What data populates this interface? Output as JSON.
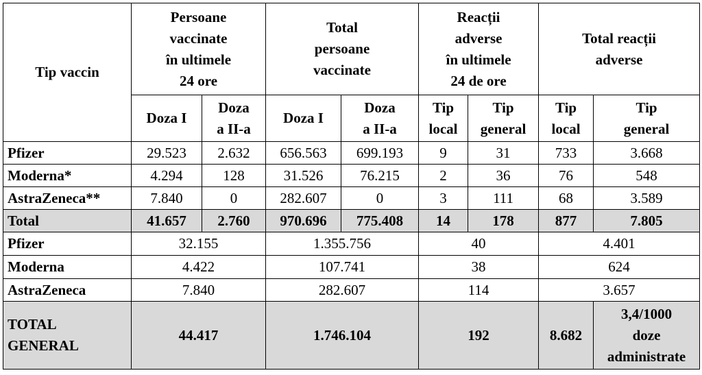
{
  "headers": {
    "tip_vaccin": "Tip vaccin",
    "group1": "Persoane\nvaccinate\nîn ultimele\n24 ore",
    "group2": "Total\npersoane\nvaccinate",
    "group3": "Reacții\nadverse\nîn ultimele\n24 de ore",
    "group4": "Total reacții\nadverse",
    "doza1": "Doza I",
    "doza2": "Doza\na II-a",
    "tip_local": "Tip\nlocal",
    "tip_general": "Tip\ngeneral"
  },
  "rows": [
    {
      "name": "Pfizer",
      "v": [
        "29.523",
        "2.632",
        "656.563",
        "699.193",
        "9",
        "31",
        "733",
        "3.668"
      ]
    },
    {
      "name": "Moderna*",
      "v": [
        "4.294",
        "128",
        "31.526",
        "76.215",
        "2",
        "36",
        "76",
        "548"
      ]
    },
    {
      "name": "AstraZeneca**",
      "v": [
        "7.840",
        "0",
        "282.607",
        "0",
        "3",
        "111",
        "68",
        "3.589"
      ]
    }
  ],
  "total": {
    "name": "Total",
    "v": [
      "41.657",
      "2.760",
      "970.696",
      "775.408",
      "14",
      "178",
      "877",
      "7.805"
    ]
  },
  "summary_rows": [
    {
      "name": "Pfizer",
      "v": [
        "32.155",
        "1.355.756",
        "40",
        "4.401"
      ]
    },
    {
      "name": "Moderna",
      "v": [
        "4.422",
        "107.741",
        "38",
        "624"
      ]
    },
    {
      "name": "AstraZeneca",
      "v": [
        "7.840",
        "282.607",
        "114",
        "3.657"
      ]
    }
  ],
  "grand_total": {
    "name": "TOTAL\nGENERAL",
    "v": [
      "44.417",
      "1.746.104",
      "192",
      "8.682",
      "3,4/1000\ndoze\nadministrate"
    ]
  }
}
